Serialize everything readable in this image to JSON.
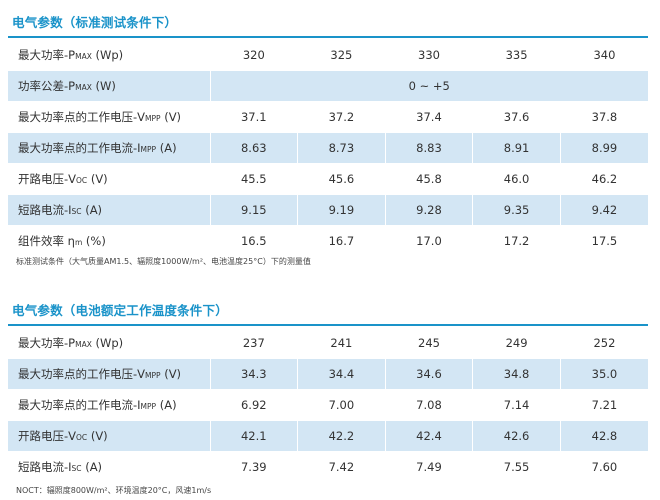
{
  "section1": {
    "title": "电气参数（标准测试条件下）",
    "rows": [
      {
        "label": "最大功率-P",
        "sub": "MAX",
        "unit": " (Wp)",
        "values": [
          "320",
          "325",
          "330",
          "335",
          "340"
        ]
      },
      {
        "label": "功率公差-P",
        "sub": "MAX",
        "unit": " (W)",
        "merged": "0 ~ +5"
      },
      {
        "label": "最大功率点的工作电压-V",
        "sub": "MPP",
        "unit": " (V)",
        "values": [
          "37.1",
          "37.2",
          "37.4",
          "37.6",
          "37.8"
        ]
      },
      {
        "label": "最大功率点的工作电流-I",
        "sub": "MPP",
        "unit": " (A)",
        "values": [
          "8.63",
          "8.73",
          "8.83",
          "8.91",
          "8.99"
        ]
      },
      {
        "label": "开路电压-V",
        "sub": "OC",
        "unit": " (V)",
        "values": [
          "45.5",
          "45.6",
          "45.8",
          "46.0",
          "46.2"
        ]
      },
      {
        "label": "短路电流-I",
        "sub": "SC",
        "unit": " (A)",
        "values": [
          "9.15",
          "9.19",
          "9.28",
          "9.35",
          "9.42"
        ]
      },
      {
        "label": "组件效率 η",
        "sub": "m",
        "unit": " (%)",
        "values": [
          "16.5",
          "16.7",
          "17.0",
          "17.2",
          "17.5"
        ]
      }
    ],
    "note": "标准测试条件（大气质量AM1.5、辐照度1000W/m²、电池温度25°C）下的测量值"
  },
  "section2": {
    "title": "电气参数（电池额定工作温度条件下）",
    "rows": [
      {
        "label": "最大功率-P",
        "sub": "MAX",
        "unit": " (Wp)",
        "values": [
          "237",
          "241",
          "245",
          "249",
          "252"
        ]
      },
      {
        "label": "最大功率点的工作电压-V",
        "sub": "MPP",
        "unit": " (V)",
        "values": [
          "34.3",
          "34.4",
          "34.6",
          "34.8",
          "35.0"
        ]
      },
      {
        "label": "最大功率点的工作电流-I",
        "sub": "MPP",
        "unit": " (A)",
        "values": [
          "6.92",
          "7.00",
          "7.08",
          "7.14",
          "7.21"
        ]
      },
      {
        "label": "开路电压-V",
        "sub": "OC",
        "unit": " (V)",
        "values": [
          "42.1",
          "42.2",
          "42.4",
          "42.6",
          "42.8"
        ]
      },
      {
        "label": "短路电流-I",
        "sub": "SC",
        "unit": " (A)",
        "values": [
          "7.39",
          "7.42",
          "7.49",
          "7.55",
          "7.60"
        ]
      }
    ],
    "note": "NOCT：辐照度800W/m²、环境温度20°C，风速1m/s"
  },
  "colors": {
    "accent": "#1a93c9",
    "stripe": "#d3e6f4",
    "text": "#333333"
  }
}
